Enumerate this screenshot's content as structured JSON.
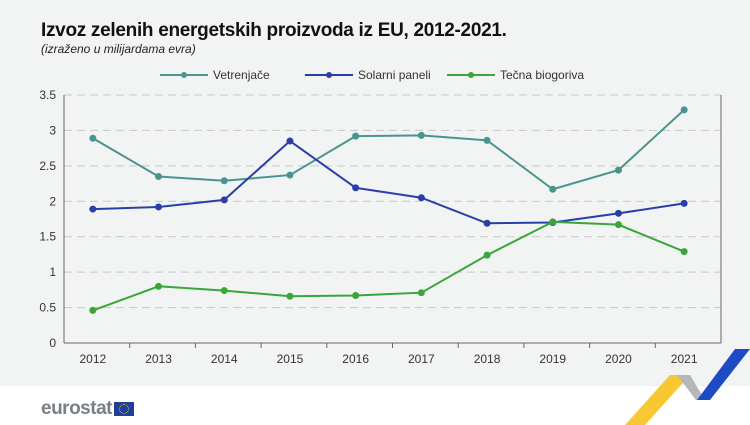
{
  "chart_data": {
    "type": "line",
    "title": "Izvoz zelenih energetskih proizvoda iz EU, 2012-2021.",
    "subtitle": "(izraženo u milijardama evra)",
    "categories": [
      "2012",
      "2013",
      "2014",
      "2015",
      "2016",
      "2017",
      "2018",
      "2019",
      "2020",
      "2021"
    ],
    "series": [
      {
        "name": "Vetrenjače",
        "color": "#4a9490",
        "values": [
          2.89,
          2.35,
          2.29,
          2.37,
          2.92,
          2.93,
          2.86,
          2.17,
          2.44,
          3.29
        ]
      },
      {
        "name": "Solarni paneli",
        "color": "#2a3fa5",
        "values": [
          1.89,
          1.92,
          2.02,
          2.85,
          2.19,
          2.05,
          1.69,
          1.7,
          1.83,
          1.97
        ]
      },
      {
        "name": "Tečna biogoriva",
        "color": "#3aa53a",
        "values": [
          0.46,
          0.8,
          0.74,
          0.66,
          0.67,
          0.71,
          1.24,
          1.71,
          1.67,
          1.29
        ]
      }
    ],
    "yticks": [
      "0",
      "0.5",
      "1",
      "1.5",
      "2",
      "2.5",
      "3",
      "3.5"
    ],
    "ylim": [
      0,
      3.5
    ],
    "grid": true,
    "legend": "top"
  },
  "footer": {
    "logo_text": "eurostat"
  }
}
